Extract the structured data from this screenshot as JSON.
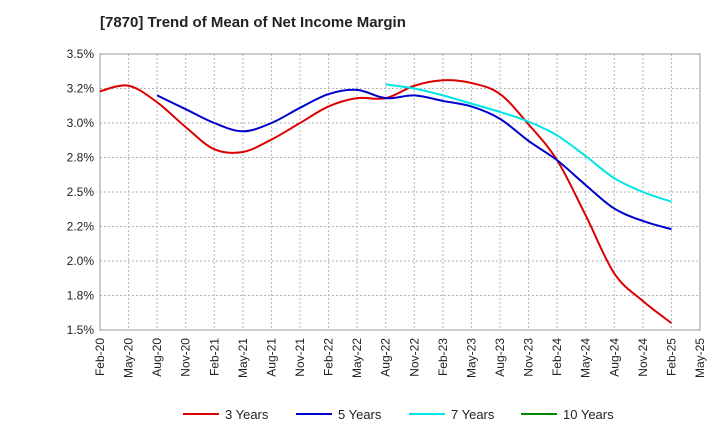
{
  "chart_data": {
    "type": "line",
    "title": "[7870]  Trend of Mean of Net Income Margin",
    "xlabel": "",
    "ylabel": "",
    "ylim": [
      1.5,
      3.5
    ],
    "yticks": [
      1.5,
      1.75,
      2.0,
      2.25,
      2.5,
      2.75,
      3.0,
      3.25,
      3.5
    ],
    "ytick_labels": [
      "1.5%",
      "1.8%",
      "2.0%",
      "2.2%",
      "2.5%",
      "2.8%",
      "3.0%",
      "3.2%",
      "3.5%"
    ],
    "x_tick_labels": [
      "Feb-20",
      "May-20",
      "Aug-20",
      "Nov-20",
      "Feb-21",
      "May-21",
      "Aug-21",
      "Nov-21",
      "Feb-22",
      "May-22",
      "Aug-22",
      "Nov-22",
      "Feb-23",
      "May-23",
      "Aug-23",
      "Nov-23",
      "Feb-24",
      "May-24",
      "Aug-24",
      "Nov-24",
      "Feb-25",
      "May-25"
    ],
    "grid": true,
    "legend_position": "bottom",
    "series": [
      {
        "name": "3 Years",
        "color": "#dd0000",
        "x": [
          "Feb-20",
          "May-20",
          "Aug-20",
          "Nov-20",
          "Feb-21",
          "May-21",
          "Aug-21",
          "Nov-21",
          "Feb-22",
          "May-22",
          "Aug-22",
          "Nov-22",
          "Feb-23",
          "May-23",
          "Aug-23",
          "Nov-23",
          "Feb-24",
          "May-24",
          "Aug-24",
          "Nov-24",
          "Feb-25"
        ],
        "values": [
          3.23,
          3.27,
          3.15,
          2.97,
          2.81,
          2.79,
          2.88,
          3.0,
          3.12,
          3.18,
          3.18,
          3.27,
          3.31,
          3.29,
          3.21,
          2.99,
          2.73,
          2.33,
          1.91,
          1.71,
          1.55
        ]
      },
      {
        "name": "5 Years",
        "color": "#0000cc",
        "x": [
          "Aug-20",
          "Nov-20",
          "Feb-21",
          "May-21",
          "Aug-21",
          "Nov-21",
          "Feb-22",
          "May-22",
          "Aug-22",
          "Nov-22",
          "Feb-23",
          "May-23",
          "Aug-23",
          "Nov-23",
          "Feb-24",
          "May-24",
          "Aug-24",
          "Nov-24",
          "Feb-25"
        ],
        "values": [
          3.2,
          3.1,
          3.0,
          2.94,
          3.0,
          3.11,
          3.21,
          3.24,
          3.18,
          3.2,
          3.16,
          3.12,
          3.03,
          2.87,
          2.73,
          2.55,
          2.38,
          2.29,
          2.23
        ]
      },
      {
        "name": "7 Years",
        "color": "#00e5e5",
        "x": [
          "Aug-22",
          "Nov-22",
          "Feb-23",
          "May-23",
          "Aug-23",
          "Nov-23",
          "Feb-24",
          "May-24",
          "Aug-24",
          "Nov-24",
          "Feb-25"
        ],
        "values": [
          3.28,
          3.25,
          3.2,
          3.14,
          3.08,
          3.01,
          2.91,
          2.76,
          2.6,
          2.5,
          2.43
        ]
      },
      {
        "name": "10 Years",
        "color": "#008800",
        "x": [],
        "values": []
      }
    ]
  }
}
